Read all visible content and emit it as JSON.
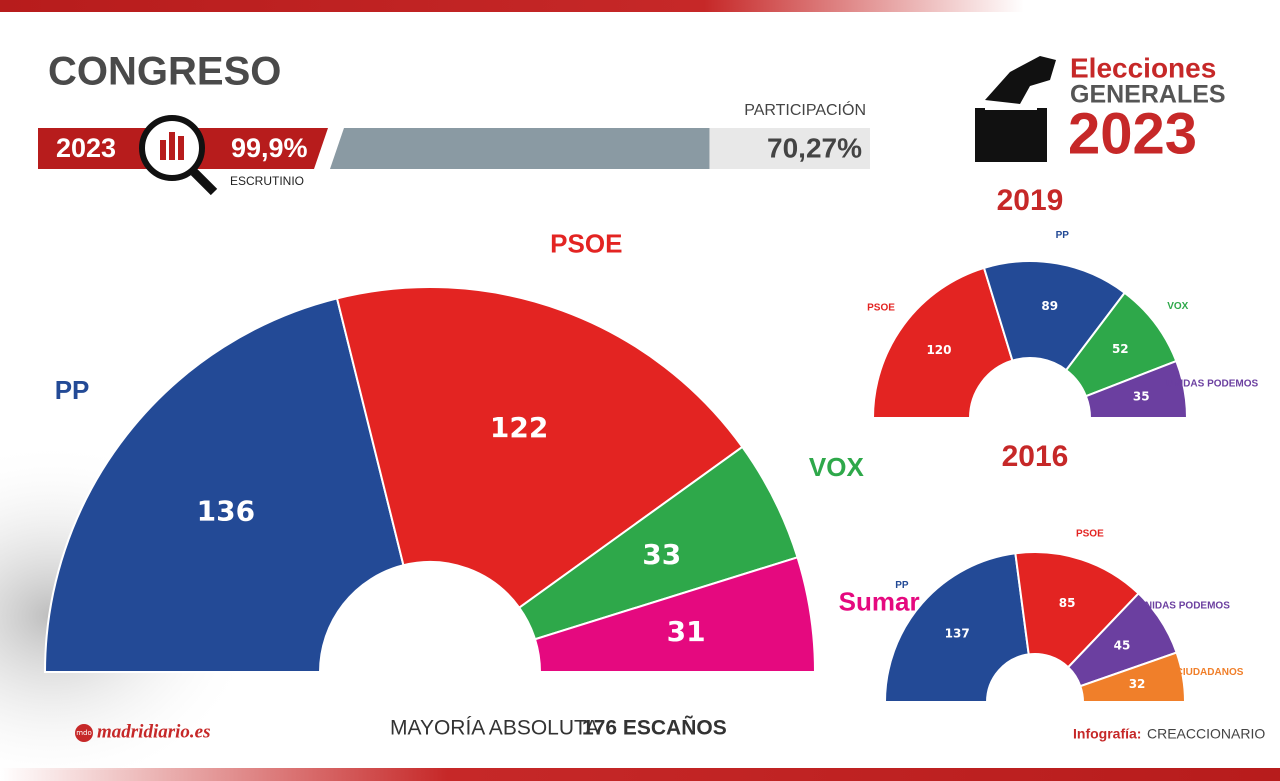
{
  "header": {
    "title": "CONGRESO",
    "year": "2023",
    "scrutiny": "99,9%",
    "scrutiny_label": "ESCRUTINIO",
    "participation_label": "PARTICIPACIÓN",
    "participation": {
      "value": 70.27,
      "label": "70,27%"
    },
    "brand_line1": "Elecciones",
    "brand_line2": "GENERALES",
    "brand_year": "2023"
  },
  "chart_data": [
    {
      "type": "half-donut",
      "categories": [
        "PP",
        "PSOE",
        "VOX",
        "Sumar"
      ],
      "values": [
        136,
        122,
        33,
        31
      ],
      "colors": [
        "#234a96",
        "#e32422",
        "#2ea84a",
        "#e5097f"
      ]
    },
    {
      "type": "half-donut",
      "title": "2019",
      "categories": [
        "PSOE",
        "PP",
        "VOX",
        "UNIDAS PODEMOS"
      ],
      "values": [
        120,
        89,
        52,
        35
      ],
      "colors": [
        "#e32422",
        "#234a96",
        "#2ea84a",
        "#6b3fa0"
      ]
    },
    {
      "type": "half-donut",
      "title": "2016",
      "categories": [
        "PP",
        "PSOE",
        "UNIDAS PODEMOS",
        "CIUDADANOS"
      ],
      "values": [
        137,
        85,
        45,
        32
      ],
      "colors": [
        "#234a96",
        "#e32422",
        "#6b3fa0",
        "#f07f2a"
      ]
    }
  ],
  "footer": {
    "majority_label": "MAYORÍA ABSOLUTA",
    "majority_value": "176 ESCAÑOS",
    "site_logo": "mdo",
    "site": "madridiario.es",
    "credit_label": "Infografía:",
    "credit": "CREACCIONARIO"
  }
}
